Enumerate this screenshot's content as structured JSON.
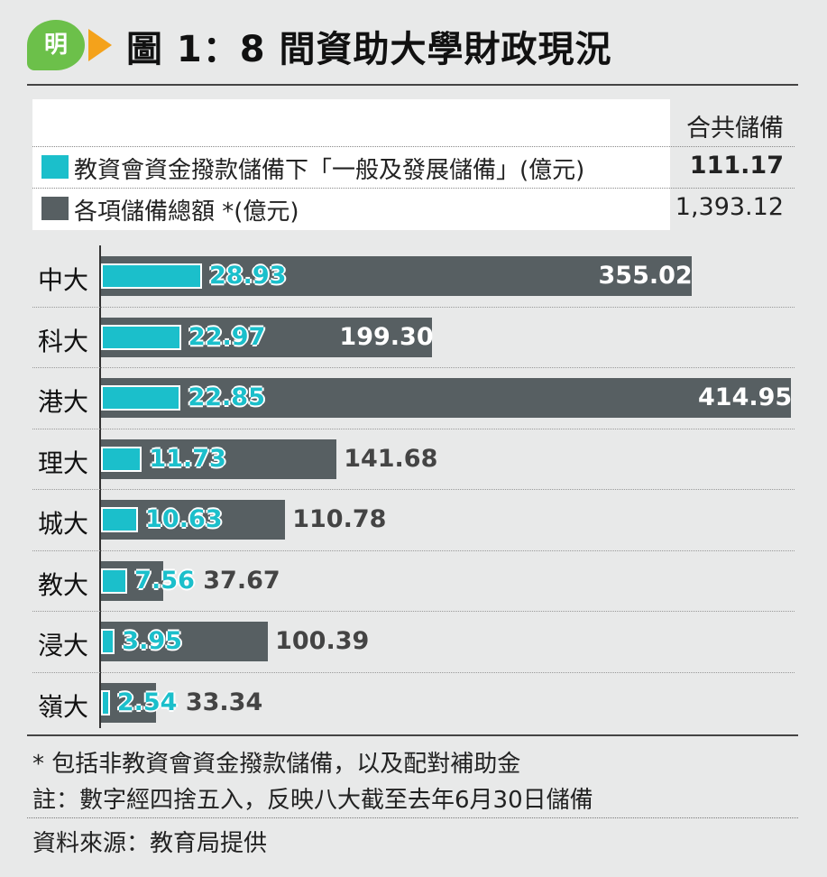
{
  "header": {
    "logo_text": "明",
    "title": "圖 1：8 間資助大學財政現況"
  },
  "legend": {
    "column_header": "合共儲備",
    "items": [
      {
        "label": "教資會資金撥款儲備下「一般及發展儲備」(億元)",
        "value": "111.17",
        "color": "#1bbfcb"
      },
      {
        "label": "各項儲備總額 *(億元)",
        "value": "1,393.12",
        "color": "#575f62"
      }
    ]
  },
  "chart_data": {
    "type": "bar",
    "orientation": "horizontal",
    "categories": [
      "中大",
      "科大",
      "港大",
      "理大",
      "城大",
      "教大",
      "浸大",
      "嶺大"
    ],
    "series": [
      {
        "name": "教資會資金撥款儲備下「一般及發展儲備」(億元)",
        "color": "#1bbfcb",
        "values": [
          28.93,
          22.97,
          22.85,
          11.73,
          10.63,
          7.56,
          3.95,
          2.54
        ],
        "labels": [
          "28.93",
          "22.97",
          "22.85",
          "11.73",
          "10.63",
          "7.56",
          "3.95",
          "2.54"
        ]
      },
      {
        "name": "各項儲備總額 *(億元)",
        "color": "#575f62",
        "values": [
          355.02,
          199.3,
          414.95,
          141.68,
          110.78,
          37.67,
          100.39,
          33.34
        ],
        "labels": [
          "355.02",
          "199.30",
          "414.95",
          "141.68",
          "110.78",
          "37.67",
          "100.39",
          "33.34"
        ]
      }
    ],
    "xlim": [
      0,
      414.95
    ],
    "grid": false
  },
  "footnotes": {
    "note1": "* 包括非教資會資金撥款儲備，以及配對補助金",
    "note2": "註：數字經四捨五入，反映八大截至去年6月30日儲備",
    "source": "資料來源：教育局提供"
  }
}
